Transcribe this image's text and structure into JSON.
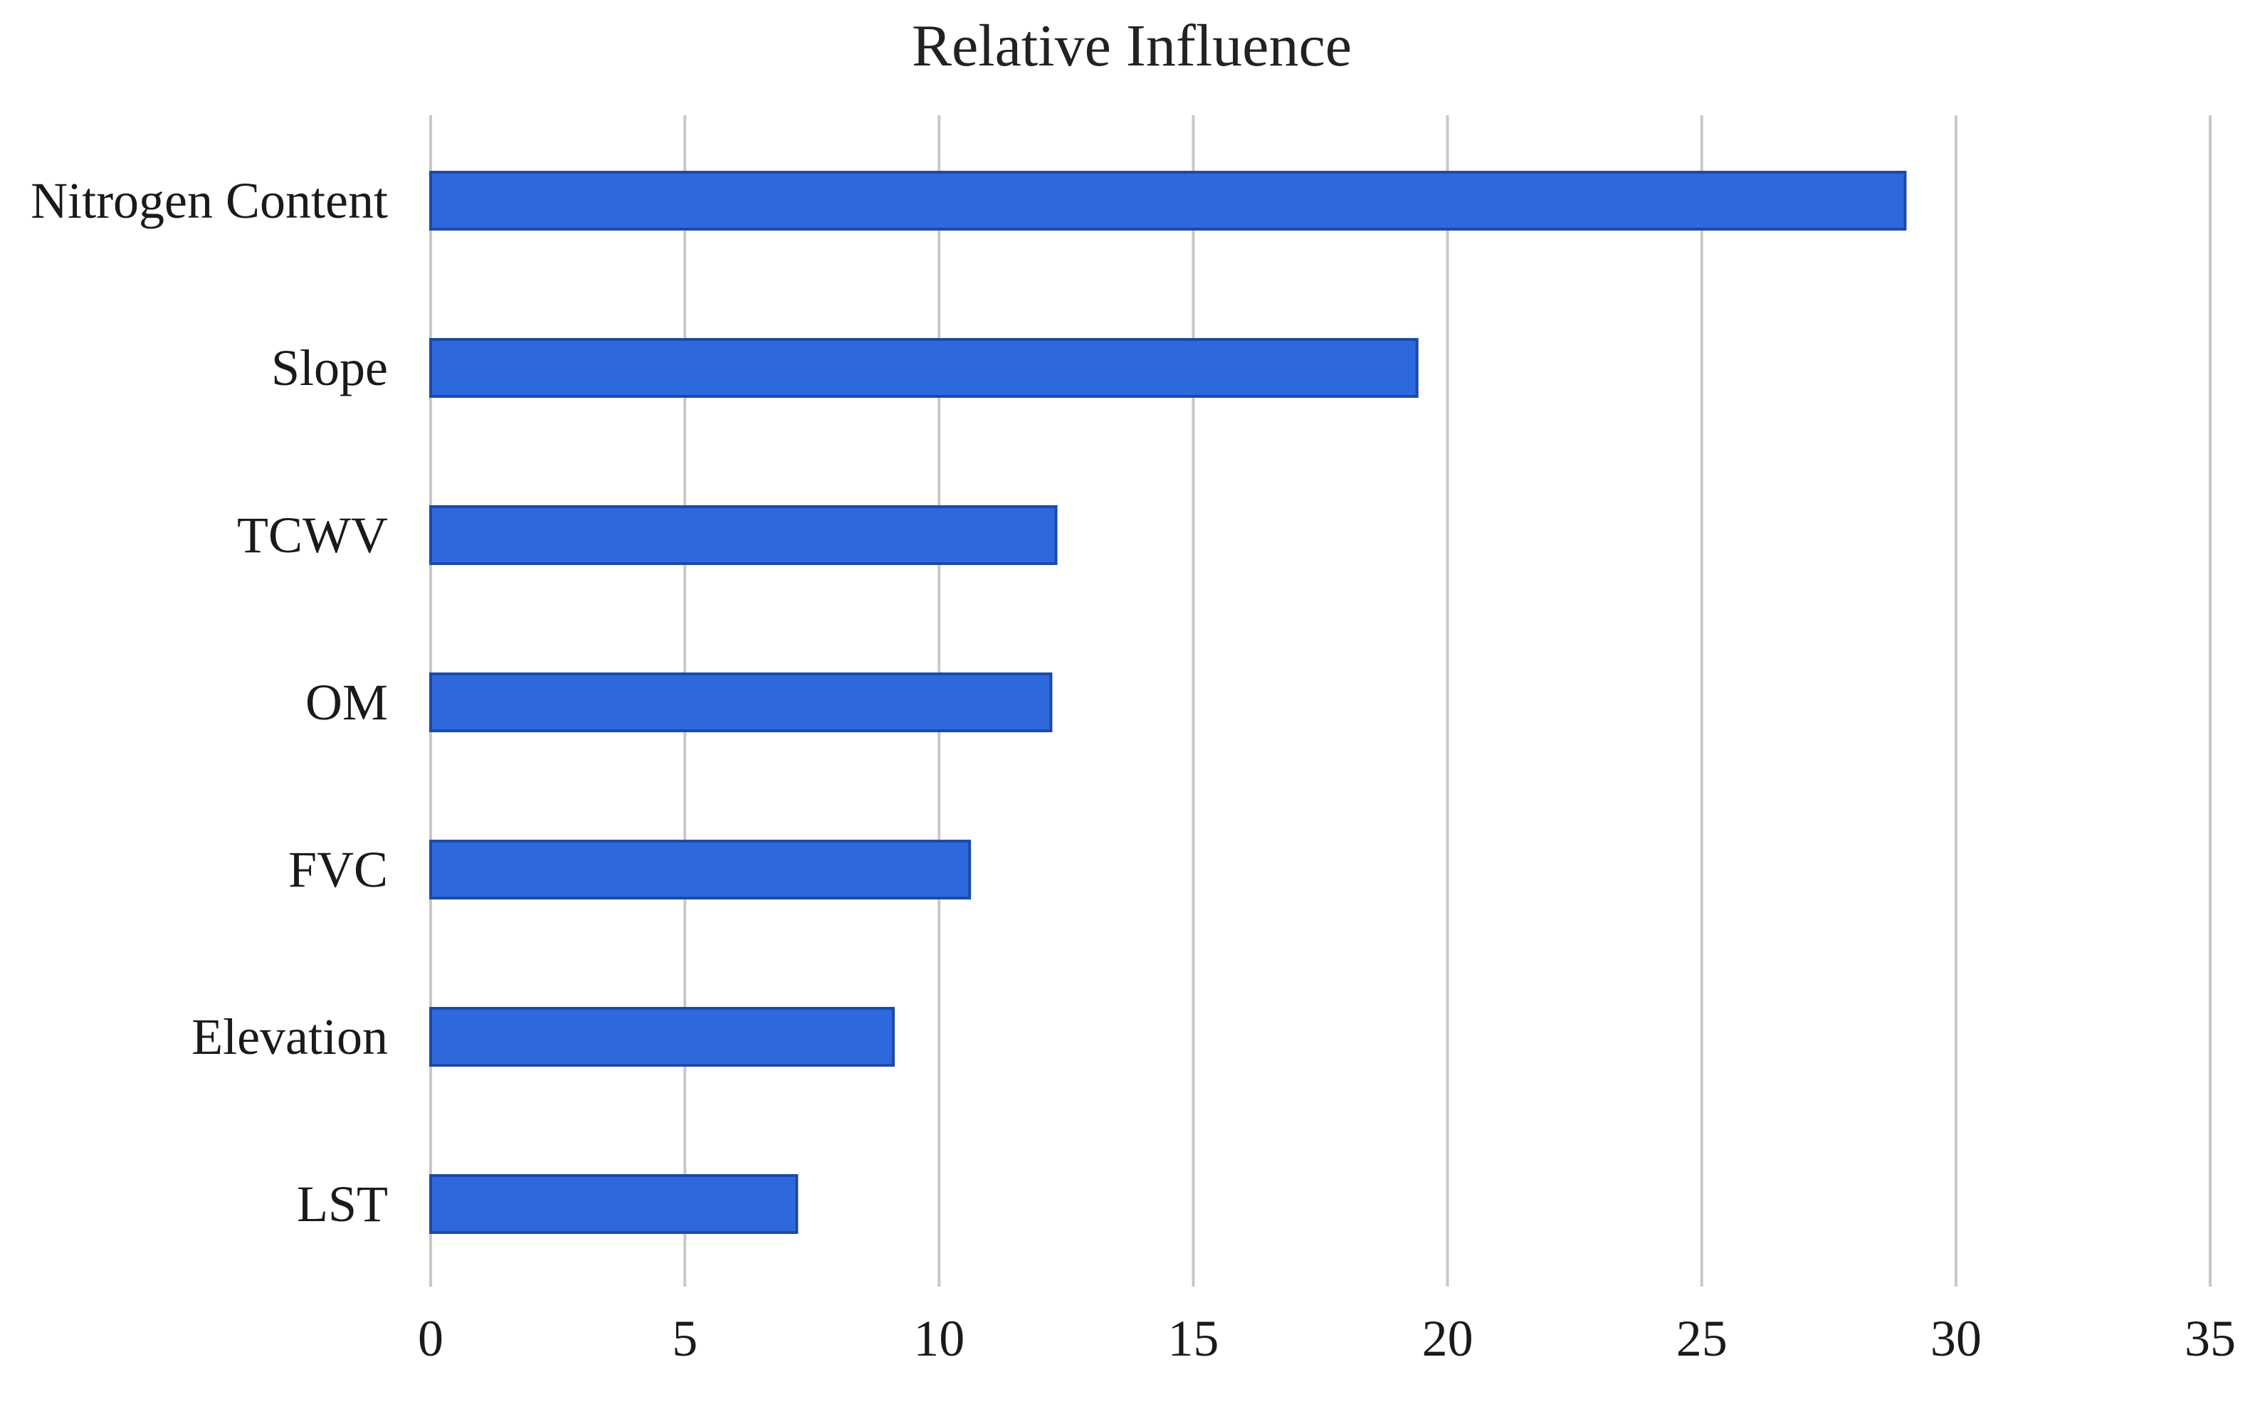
{
  "chart_data": {
    "type": "bar",
    "orientation": "horizontal",
    "title": "Relative Influence",
    "xlabel": "",
    "ylabel": "",
    "categories": [
      "Nitrogen Content",
      "Slope",
      "TCWV",
      "OM",
      "FVC",
      "Elevation",
      "LST"
    ],
    "values": [
      29.0,
      19.4,
      12.3,
      12.2,
      10.6,
      9.1,
      7.2
    ],
    "xlim": [
      0,
      35
    ],
    "xticks": [
      "0",
      "5",
      "10",
      "15",
      "20",
      "25",
      "30",
      "35"
    ],
    "grid": "vertical",
    "legend": "none",
    "colors": {
      "bar_fill": "#2d69dd",
      "bar_stroke": "#1d4aa8"
    }
  }
}
